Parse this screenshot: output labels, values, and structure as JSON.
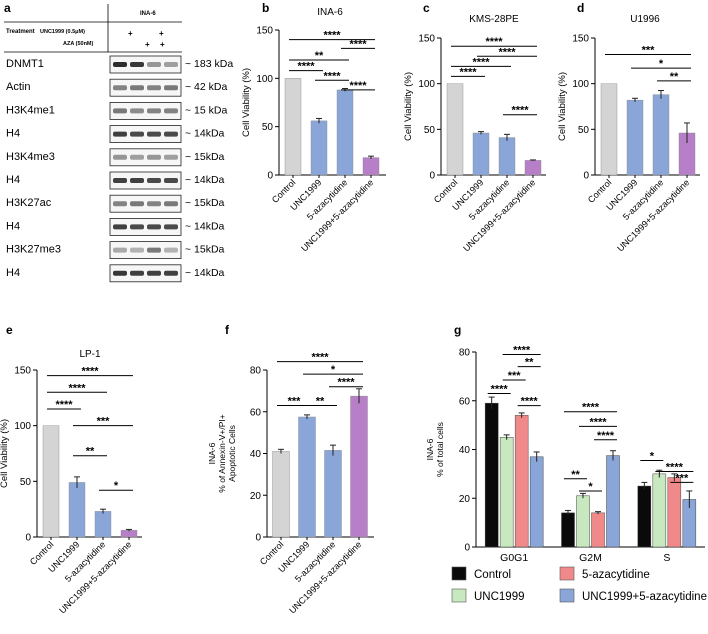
{
  "colors": {
    "grey": "#d4d4d4",
    "blue": "#8aa6d8",
    "purple": "#b77fc7",
    "black": "#0a0a0a",
    "green": "#c8e8c0",
    "salmon": "#f08a8a",
    "axis": "#000000"
  },
  "western_blot": {
    "panel_label": "a",
    "cell_line": "INA-6",
    "treatment_label": "Treatment",
    "row_labels": [
      "UNC1999 (0.5μM)",
      "AZA (50nM)"
    ],
    "unc_marks": [
      "+",
      "+"
    ],
    "aza_marks": [
      "+",
      "+"
    ],
    "blots": [
      {
        "protein": "DNMT1",
        "size": "~ 183 kDa"
      },
      {
        "protein": "Actin",
        "size": "~ 42 kDa"
      },
      {
        "protein": "H3K4me1",
        "size": "~ 15 kDa"
      },
      {
        "protein": "H4",
        "size": "~ 14kDa"
      },
      {
        "protein": "H3K4me3",
        "size": "~ 15kDa"
      },
      {
        "protein": "H4",
        "size": "~ 14kDa"
      },
      {
        "protein": "H3K27ac",
        "size": "~ 15kDa"
      },
      {
        "protein": "H4",
        "size": "~ 14kDa"
      },
      {
        "protein": "H3K27me3",
        "size": "~ 15kDa"
      },
      {
        "protein": "H4",
        "size": "~ 14kDa"
      }
    ],
    "band_intensity": [
      [
        1.0,
        0.95,
        0.45,
        0.4
      ],
      [
        0.55,
        0.6,
        0.55,
        0.6
      ],
      [
        0.6,
        0.5,
        0.55,
        0.55
      ],
      [
        0.9,
        0.85,
        0.85,
        0.85
      ],
      [
        0.45,
        0.4,
        0.45,
        0.4
      ],
      [
        0.9,
        0.9,
        0.85,
        0.85
      ],
      [
        0.55,
        0.6,
        0.55,
        0.6
      ],
      [
        0.9,
        0.85,
        0.85,
        0.85
      ],
      [
        0.35,
        0.3,
        0.6,
        0.3
      ],
      [
        0.95,
        0.9,
        0.9,
        0.9
      ]
    ]
  },
  "chart_data": [
    {
      "id": "b",
      "panel_label": "b",
      "type": "bar",
      "title": "INA-6",
      "ylabel": "Cell Viability (%)",
      "ylim": [
        0,
        150
      ],
      "yticks": [
        "0",
        "50",
        "100",
        "150"
      ],
      "categories": [
        "Control",
        "UNC1999",
        "5-azacytidine",
        "UNC1999+5-azacytidine"
      ],
      "values": [
        100,
        56,
        88,
        18
      ],
      "errors": [
        0,
        2.5,
        1.5,
        1.5
      ],
      "colors": [
        "grey",
        "blue",
        "blue",
        "purple"
      ],
      "significance": [
        {
          "from": 0,
          "to": 3,
          "label": "****",
          "y": 140
        },
        {
          "from": 2,
          "to": 3,
          "label": "****",
          "y": 131
        },
        {
          "from": 0,
          "to": 2,
          "label": "**",
          "y": 119
        },
        {
          "from": 0,
          "to": 1,
          "label": "****",
          "y": 108
        },
        {
          "from": 1,
          "to": 2,
          "label": "****",
          "y": 98
        },
        {
          "from": 2,
          "to": 3,
          "label": "****",
          "y": 88
        }
      ]
    },
    {
      "id": "c",
      "panel_label": "c",
      "type": "bar",
      "title": "KMS-28PE",
      "ylabel": "Cell Viability (%)",
      "ylim": [
        0,
        150
      ],
      "yticks": [
        "0",
        "50",
        "100",
        "150"
      ],
      "categories": [
        "Control",
        "UNC1999",
        "5-azacytidine",
        "UNC1999+5-azacytidine"
      ],
      "values": [
        100,
        46,
        41,
        16
      ],
      "errors": [
        0,
        1.5,
        3.5,
        0.5
      ],
      "colors": [
        "grey",
        "blue",
        "blue",
        "purple"
      ],
      "significance": [
        {
          "from": 0,
          "to": 3,
          "label": "****",
          "y": 141
        },
        {
          "from": 1,
          "to": 3,
          "label": "****",
          "y": 130
        },
        {
          "from": 0,
          "to": 2,
          "label": "****",
          "y": 119
        },
        {
          "from": 0,
          "to": 1,
          "label": "****",
          "y": 108
        },
        {
          "from": 2,
          "to": 3,
          "label": "****",
          "y": 66
        }
      ]
    },
    {
      "id": "d",
      "panel_label": "d",
      "type": "bar",
      "title": "U1996",
      "ylabel": "Cell Viability (%)",
      "ylim": [
        0,
        150
      ],
      "yticks": [
        "0",
        "50",
        "100",
        "150"
      ],
      "categories": [
        "Control",
        "UNC1999",
        "5-azacytidine",
        "UNC1999+5-azacytidine"
      ],
      "values": [
        100,
        82,
        88,
        46
      ],
      "errors": [
        0,
        2,
        4.5,
        11
      ],
      "colors": [
        "grey",
        "blue",
        "blue",
        "purple"
      ],
      "significance": [
        {
          "from": 0,
          "to": 3,
          "label": "***",
          "y": 132
        },
        {
          "from": 1,
          "to": 3,
          "label": "*",
          "y": 117
        },
        {
          "from": 2,
          "to": 3,
          "label": "**",
          "y": 103
        }
      ]
    },
    {
      "id": "e",
      "panel_label": "e",
      "type": "bar",
      "title": "LP-1",
      "ylabel": "Cell Viability (%)",
      "ylim": [
        0,
        150
      ],
      "yticks": [
        "0",
        "50",
        "100",
        "150"
      ],
      "categories": [
        "Control",
        "UNC1999",
        "5-azacytidine",
        "UNC1999+5-azacytidine"
      ],
      "values": [
        100,
        49,
        23,
        6
      ],
      "errors": [
        0,
        5,
        2,
        0.8
      ],
      "colors": [
        "grey",
        "blue",
        "blue",
        "purple"
      ],
      "significance": [
        {
          "from": 0,
          "to": 3,
          "label": "****",
          "y": 145
        },
        {
          "from": 0,
          "to": 2,
          "label": "****",
          "y": 130
        },
        {
          "from": 0,
          "to": 1,
          "label": "****",
          "y": 115
        },
        {
          "from": 1,
          "to": 3,
          "label": "***",
          "y": 100
        },
        {
          "from": 1,
          "to": 2,
          "label": "**",
          "y": 73
        },
        {
          "from": 2,
          "to": 3,
          "label": "*",
          "y": 42
        }
      ]
    },
    {
      "id": "f",
      "panel_label": "f",
      "type": "bar",
      "title": "",
      "ylabel": "INA-6\n% of Annexin-V+/PI+\nApoptotic Cells",
      "ylim": [
        0,
        80
      ],
      "yticks": [
        "0",
        "20",
        "40",
        "60",
        "80"
      ],
      "categories": [
        "Control",
        "UNC1999",
        "5-azacytidine",
        "UNC1999+5-azacytidine"
      ],
      "values": [
        41,
        57.5,
        41.5,
        67.5
      ],
      "errors": [
        1,
        1,
        2.5,
        3.5
      ],
      "colors": [
        "grey",
        "blue",
        "blue",
        "purple"
      ],
      "significance": [
        {
          "from": 0,
          "to": 3,
          "label": "****",
          "y": 84
        },
        {
          "from": 1,
          "to": 3,
          "label": "*",
          "y": 78
        },
        {
          "from": 2,
          "to": 3,
          "label": "****",
          "y": 72
        },
        {
          "from": 0,
          "to": 1,
          "label": "***",
          "y": 63
        },
        {
          "from": 1,
          "to": 2,
          "label": "**",
          "y": 63
        }
      ]
    },
    {
      "id": "g",
      "panel_label": "g",
      "type": "bar",
      "title": "",
      "ylabel": "INA-6\n% of total cells",
      "ylim": [
        0,
        80
      ],
      "yticks": [
        "0",
        "20",
        "40",
        "60",
        "80"
      ],
      "categories": [
        "G0G1",
        "G2M",
        "S"
      ],
      "series": [
        {
          "name": "Control",
          "values": [
            59,
            14,
            25
          ],
          "errors": [
            2.5,
            1,
            1.5
          ],
          "color": "black"
        },
        {
          "name": "UNC1999",
          "values": [
            45,
            21,
            30
          ],
          "errors": [
            1,
            1,
            1.5
          ],
          "color": "green"
        },
        {
          "name": "5-azacytidine",
          "values": [
            54,
            14,
            28.5
          ],
          "errors": [
            1,
            0.5,
            1.5
          ],
          "color": "salmon"
        },
        {
          "name": "UNC1999+5-azacytidine",
          "values": [
            37,
            37.5,
            19.5
          ],
          "errors": [
            2,
            2,
            3.5
          ],
          "color": "blue"
        }
      ],
      "significance": [
        {
          "group": 0,
          "from": 1,
          "to": 3,
          "label": "****",
          "y": 79
        },
        {
          "group": 0,
          "from": 2,
          "to": 3,
          "label": "**",
          "y": 74
        },
        {
          "group": 0,
          "from": 1,
          "to": 2,
          "label": "***",
          "y": 68.5
        },
        {
          "group": 0,
          "from": 0,
          "to": 1,
          "label": "****",
          "y": 63
        },
        {
          "group": 0,
          "from": 2,
          "to": 3,
          "label": "****",
          "y": 58
        },
        {
          "group": 1,
          "from": 0,
          "to": 3,
          "label": "****",
          "y": 55.5
        },
        {
          "group": 1,
          "from": 1,
          "to": 3,
          "label": "****",
          "y": 49.5
        },
        {
          "group": 1,
          "from": 2,
          "to": 3,
          "label": "****",
          "y": 44
        },
        {
          "group": 1,
          "from": 0,
          "to": 1,
          "label": "**",
          "y": 28
        },
        {
          "group": 1,
          "from": 1,
          "to": 2,
          "label": "*",
          "y": 23
        },
        {
          "group": 2,
          "from": 0,
          "to": 1,
          "label": "*",
          "y": 35.5
        },
        {
          "group": 2,
          "from": 1,
          "to": 3,
          "label": "****",
          "y": 31
        },
        {
          "group": 2,
          "from": 2,
          "to": 3,
          "label": "***",
          "y": 26.5
        }
      ]
    }
  ]
}
